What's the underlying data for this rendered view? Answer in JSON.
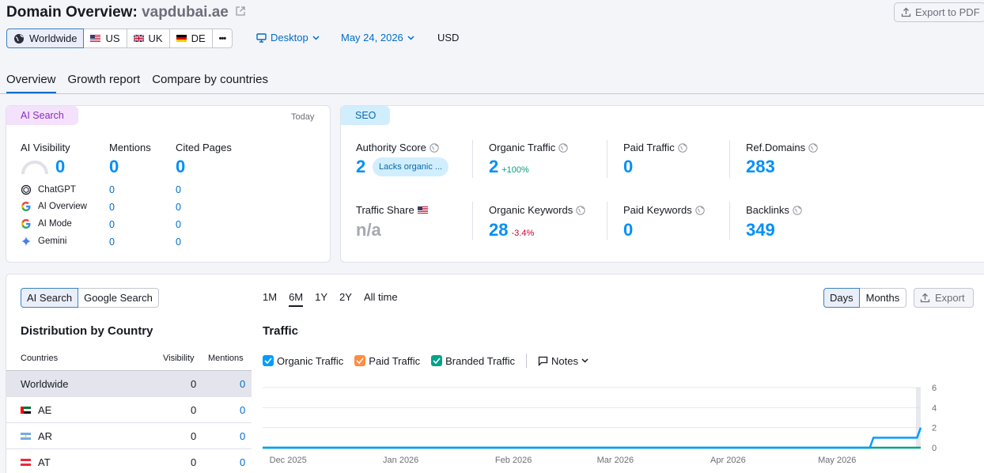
{
  "header": {
    "title_prefix": "Domain Overview: ",
    "domain": "vapdubai.ae",
    "export_pdf": "Export to PDF"
  },
  "regions": [
    {
      "label": "Worldwide",
      "icon": "globe-icon",
      "active": true
    },
    {
      "label": "US",
      "icon": "us-flag-icon"
    },
    {
      "label": "UK",
      "icon": "uk-flag-icon"
    },
    {
      "label": "DE",
      "icon": "de-flag-icon"
    }
  ],
  "more_label": "•••",
  "device": "Desktop",
  "date": "May 24, 2026",
  "currency": "USD",
  "tabs": [
    "Overview",
    "Growth report",
    "Compare by countries"
  ],
  "ai_card": {
    "pill": "AI Search",
    "today": "Today",
    "visibility_label": "AI Visibility",
    "visibility_value": "0",
    "mentions_label": "Mentions",
    "mentions_value": "0",
    "cited_label": "Cited Pages",
    "cited_value": "0",
    "rows": [
      {
        "name": "ChatGPT",
        "mentions": "0",
        "cited": "0",
        "icon": "chatgpt-icon"
      },
      {
        "name": "AI Overview",
        "mentions": "0",
        "cited": "0",
        "icon": "google-icon"
      },
      {
        "name": "AI Mode",
        "mentions": "0",
        "cited": "0",
        "icon": "google-icon"
      },
      {
        "name": "Gemini",
        "mentions": "0",
        "cited": "0",
        "icon": "gemini-icon"
      }
    ]
  },
  "seo_card": {
    "pill": "SEO",
    "authority_label": "Authority Score",
    "authority_value": "2",
    "authority_badge": "Lacks organic ...",
    "organic_traffic_label": "Organic Traffic",
    "organic_traffic_value": "2",
    "organic_traffic_change": "+100%",
    "paid_traffic_label": "Paid Traffic",
    "paid_traffic_value": "0",
    "ref_domains_label": "Ref.Domains",
    "ref_domains_value": "283",
    "traffic_share_label": "Traffic Share",
    "traffic_share_value": "n/a",
    "organic_keywords_label": "Organic Keywords",
    "organic_keywords_value": "28",
    "organic_keywords_change": "-3.4%",
    "paid_keywords_label": "Paid Keywords",
    "paid_keywords_value": "0",
    "backlinks_label": "Backlinks",
    "backlinks_value": "349"
  },
  "distribution": {
    "toggle_ai": "AI Search",
    "toggle_google": "Google Search",
    "title": "Distribution by Country",
    "col_countries": "Countries",
    "col_visibility": "Visibility",
    "col_mentions": "Mentions",
    "rows": [
      {
        "country": "Worldwide",
        "visibility": "0",
        "mentions": "0",
        "flag": ""
      },
      {
        "country": "AE",
        "visibility": "0",
        "mentions": "0",
        "flag": "ae-flag-icon"
      },
      {
        "country": "AR",
        "visibility": "0",
        "mentions": "0",
        "flag": "ar-flag-icon"
      },
      {
        "country": "AT",
        "visibility": "0",
        "mentions": "0",
        "flag": "at-flag-icon"
      }
    ]
  },
  "periods": [
    "1M",
    "6M",
    "1Y",
    "2Y",
    "All time"
  ],
  "active_period": "6M",
  "traffic": {
    "title": "Traffic",
    "legend": [
      "Organic Traffic",
      "Paid Traffic",
      "Branded Traffic"
    ],
    "notes": "Notes",
    "days": "Days",
    "months": "Months",
    "export": "Export"
  },
  "colors": {
    "accent": "#006dca",
    "value_blue": "#008ff8",
    "organic": "#009dff",
    "paid": "#ff8c42",
    "branded": "#00a389",
    "ai_pill_bg": "#f4e1fb",
    "ai_pill_text": "#8a2ec1",
    "seo_pill_bg": "#d1eefe",
    "seo_pill_text": "#0a6aa8"
  },
  "chart_data": {
    "type": "line",
    "title": "Traffic",
    "x_tick_labels": [
      "Dec 2025",
      "Jan 2026",
      "Feb 2026",
      "Mar 2026",
      "Apr 2026",
      "May 2026"
    ],
    "y_ticks": [
      0,
      2,
      4,
      6
    ],
    "ylim": [
      0,
      6
    ],
    "xlim": [
      "2025-11-24",
      "2026-05-24"
    ],
    "series": [
      {
        "name": "Organic Traffic",
        "color": "#009dff",
        "x": [
          "2025-11-24",
          "2026-05-10",
          "2026-05-11",
          "2026-05-23",
          "2026-05-24"
        ],
        "y": [
          0,
          0,
          1,
          1,
          2
        ]
      },
      {
        "name": "Branded Traffic",
        "color": "#00a389",
        "x": [
          "2025-11-24",
          "2026-05-24"
        ],
        "y": [
          0,
          0
        ]
      }
    ],
    "grid": true,
    "legend": "top-left"
  }
}
